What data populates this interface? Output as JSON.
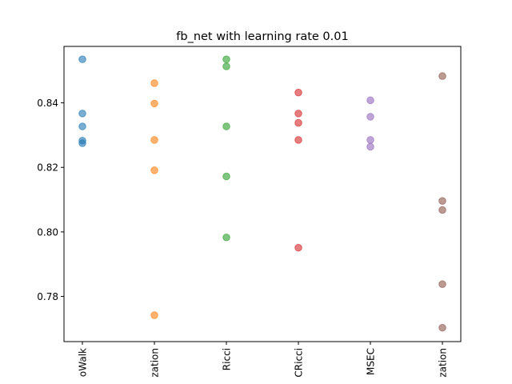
{
  "chart_data": {
    "type": "scatter",
    "title": "fb_net with learning rate 0.01",
    "xlabel": "",
    "ylabel": "",
    "ylim": [
      0.766,
      0.8575
    ],
    "yticks": [
      0.78,
      0.8,
      0.82,
      0.84
    ],
    "ytick_labels": [
      "0.78",
      "0.80",
      "0.82",
      "0.84"
    ],
    "categories": [
      "oWalk",
      "zation",
      "Ricci",
      "CRicci",
      "MSEC",
      "zation"
    ],
    "grid": false,
    "legend": "none",
    "series": [
      {
        "color": "#1f77b4",
        "values": [
          0.8535,
          0.8367,
          0.8327,
          0.8283,
          0.8275
        ]
      },
      {
        "color": "#ff7f0e",
        "values": [
          0.8461,
          0.8398,
          0.8285,
          0.8191,
          0.7742
        ]
      },
      {
        "color": "#2ca02c",
        "values": [
          0.8535,
          0.8513,
          0.8327,
          0.8172,
          0.7983
        ]
      },
      {
        "color": "#d62728",
        "values": [
          0.8432,
          0.8367,
          0.8338,
          0.8285,
          0.7951
        ]
      },
      {
        "color": "#9467bd",
        "values": [
          0.8408,
          0.8357,
          0.8285,
          0.8264
        ]
      },
      {
        "color": "#8c564b",
        "values": [
          0.8483,
          0.8096,
          0.8068,
          0.7838,
          0.7703
        ]
      }
    ]
  }
}
